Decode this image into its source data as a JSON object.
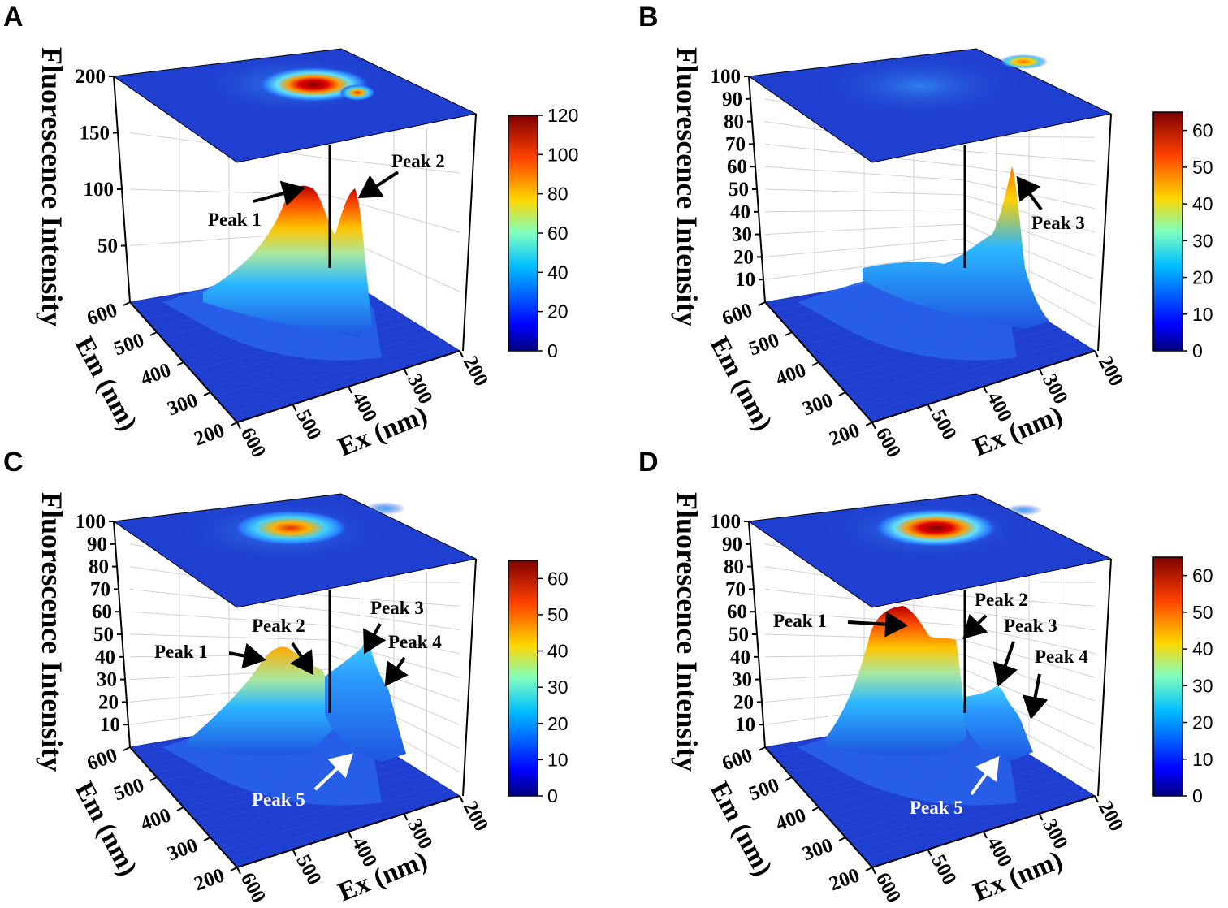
{
  "figure": {
    "note": "Fluorescence excitation-emission matrix 3D surface plots"
  },
  "chart_data": [
    {
      "id": "A",
      "type": "surface3d",
      "panel_label": "A",
      "zlabel": "Fluorescence Intensity",
      "xlabel": "Ex (nm)",
      "ylabel": "Em (nm)",
      "x_ticks": [
        "600",
        "500",
        "400",
        "300",
        "200"
      ],
      "y_ticks": [
        "200",
        "300",
        "400",
        "500",
        "600"
      ],
      "z_ticks": [
        "50",
        "100",
        "150",
        "200"
      ],
      "zlim": [
        0,
        200
      ],
      "colorbar_ticks": [
        "0",
        "20",
        "40",
        "60",
        "80",
        "100",
        "120"
      ],
      "colorbar_range": [
        0,
        120
      ],
      "peaks": [
        {
          "name": "Peak 1",
          "ex": 470,
          "em": 450,
          "value": 110
        },
        {
          "name": "Peak 2",
          "ex": 385,
          "em": 460,
          "value": 105
        }
      ],
      "annotations": [
        {
          "text": "Peak 1",
          "arrow": "black"
        },
        {
          "text": "Peak 2",
          "arrow": "black"
        }
      ]
    },
    {
      "id": "B",
      "type": "surface3d",
      "panel_label": "B",
      "zlabel": "Fluorescence Intensity",
      "xlabel": "Ex (nm)",
      "ylabel": "Em (nm)",
      "x_ticks": [
        "600",
        "500",
        "400",
        "300",
        "200"
      ],
      "y_ticks": [
        "200",
        "300",
        "400",
        "500",
        "600"
      ],
      "z_ticks": [
        "10",
        "20",
        "30",
        "40",
        "50",
        "60",
        "70",
        "80",
        "90",
        "100"
      ],
      "zlim": [
        0,
        100
      ],
      "colorbar_ticks": [
        "0",
        "10",
        "20",
        "30",
        "40",
        "50",
        "60"
      ],
      "colorbar_range": [
        0,
        65
      ],
      "peaks": [
        {
          "name": "Peak 3",
          "ex": 280,
          "em": 560,
          "value": 64
        }
      ],
      "annotations": [
        {
          "text": "Peak 3",
          "arrow": "black"
        }
      ]
    },
    {
      "id": "C",
      "type": "surface3d",
      "panel_label": "C",
      "zlabel": "Fluorescence Intensity",
      "xlabel": "Ex (nm)",
      "ylabel": "Em (nm)",
      "x_ticks": [
        "600",
        "500",
        "400",
        "300",
        "200"
      ],
      "y_ticks": [
        "200",
        "300",
        "400",
        "500",
        "600"
      ],
      "z_ticks": [
        "10",
        "20",
        "30",
        "40",
        "50",
        "60",
        "70",
        "80",
        "90",
        "100"
      ],
      "zlim": [
        0,
        100
      ],
      "colorbar_ticks": [
        "0",
        "10",
        "20",
        "30",
        "40",
        "50",
        "60"
      ],
      "colorbar_range": [
        0,
        65
      ],
      "peaks": [
        {
          "name": "Peak 1",
          "ex": 470,
          "em": 450,
          "value": 44
        },
        {
          "name": "Peak 2",
          "ex": 410,
          "em": 460,
          "value": 33
        },
        {
          "name": "Peak 3",
          "ex": 300,
          "em": 520,
          "value": 38
        },
        {
          "name": "Peak 4",
          "ex": 270,
          "em": 480,
          "value": 30
        },
        {
          "name": "Peak 5",
          "ex": 380,
          "em": 360,
          "value": 12
        }
      ],
      "annotations": [
        {
          "text": "Peak 1",
          "arrow": "black"
        },
        {
          "text": "Peak 2",
          "arrow": "black"
        },
        {
          "text": "Peak 3",
          "arrow": "black"
        },
        {
          "text": "Peak 4",
          "arrow": "black"
        },
        {
          "text": "Peak 5",
          "arrow": "white"
        }
      ]
    },
    {
      "id": "D",
      "type": "surface3d",
      "panel_label": "D",
      "zlabel": "Fluorescence Intensity",
      "xlabel": "Ex (nm)",
      "ylabel": "Em (nm)",
      "x_ticks": [
        "600",
        "500",
        "400",
        "300",
        "200"
      ],
      "y_ticks": [
        "200",
        "300",
        "400",
        "500",
        "600"
      ],
      "z_ticks": [
        "10",
        "20",
        "30",
        "40",
        "50",
        "60",
        "70",
        "80",
        "90",
        "100"
      ],
      "zlim": [
        0,
        100
      ],
      "colorbar_ticks": [
        "0",
        "10",
        "20",
        "30",
        "40",
        "50",
        "60"
      ],
      "colorbar_range": [
        0,
        65
      ],
      "peaks": [
        {
          "name": "Peak 1",
          "ex": 470,
          "em": 450,
          "value": 64
        },
        {
          "name": "Peak 2",
          "ex": 410,
          "em": 460,
          "value": 52
        },
        {
          "name": "Peak 3",
          "ex": 300,
          "em": 520,
          "value": 30
        },
        {
          "name": "Peak 4",
          "ex": 270,
          "em": 480,
          "value": 20
        },
        {
          "name": "Peak 5",
          "ex": 380,
          "em": 360,
          "value": 10
        }
      ],
      "annotations": [
        {
          "text": "Peak 1",
          "arrow": "black"
        },
        {
          "text": "Peak 2",
          "arrow": "black"
        },
        {
          "text": "Peak 3",
          "arrow": "black"
        },
        {
          "text": "Peak 4",
          "arrow": "black"
        },
        {
          "text": "Peak 5",
          "arrow": "white"
        }
      ]
    }
  ],
  "colors": {
    "floor": "#1f3fd0",
    "axis": "#000000",
    "grid": "#d0d0d0",
    "arrow_black": "#000000",
    "arrow_white": "#ffffff"
  }
}
